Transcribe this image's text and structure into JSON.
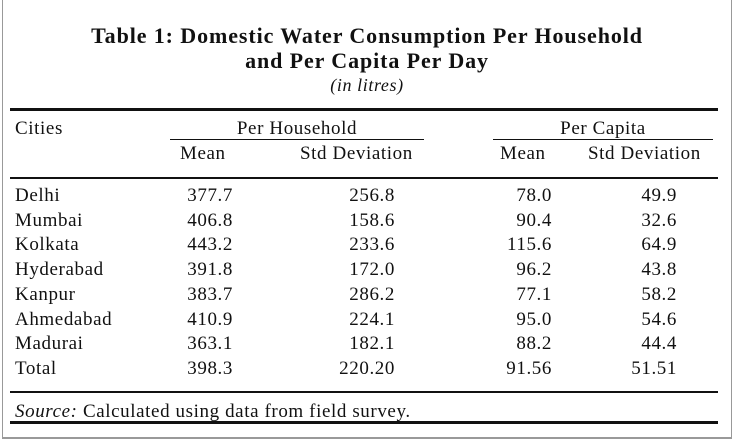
{
  "table": {
    "title_line1": "Table 1: Domestic Water Consumption Per Household",
    "title_line2": "and Per Capita Per Day",
    "unit": "(in litres)",
    "first_column": "Cities",
    "column_groups": [
      "Per Household",
      "Per Capita"
    ],
    "columns": [
      "Mean",
      "Std Deviation",
      "Mean",
      "Std Deviation"
    ],
    "rows": [
      [
        "Delhi",
        "377.7",
        "256.8",
        "78.0",
        "49.9"
      ],
      [
        "Mumbai",
        "406.8",
        "158.6",
        "90.4",
        "32.6"
      ],
      [
        "Kolkata",
        "443.2",
        "233.6",
        "115.6",
        "64.9"
      ],
      [
        "Hyderabad",
        "391.8",
        "172.0",
        "96.2",
        "43.8"
      ],
      [
        "Kanpur",
        "383.7",
        "286.2",
        "77.1",
        "58.2"
      ],
      [
        "Ahmedabad",
        "410.9",
        "224.1",
        "95.0",
        "54.6"
      ],
      [
        "Madurai",
        "363.1",
        "182.1",
        "88.2",
        "44.4"
      ],
      [
        "Total",
        "398.3",
        "220.20",
        "91.56",
        "51.51"
      ]
    ],
    "source_label": "Source:",
    "source_text": "Calculated using data from field survey."
  }
}
